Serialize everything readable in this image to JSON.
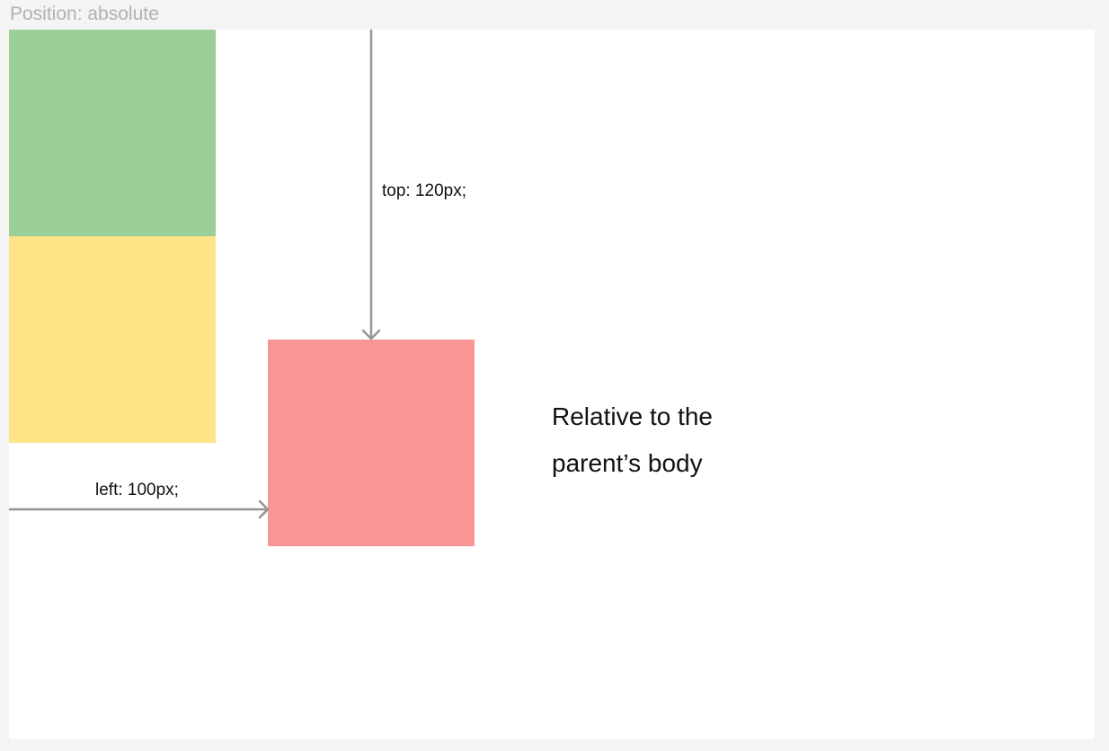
{
  "title": "Position: absolute",
  "labels": {
    "top": "top: 120px;",
    "left": "left: 100px;"
  },
  "caption": {
    "line1": "Relative to the",
    "line2": "parent’s body"
  },
  "colors": {
    "green_box": "#9acf97",
    "yellow_box": "#fee387",
    "red_box": "#f89595",
    "arrow": "#959595",
    "background": "#f4f4f4",
    "canvas": "#ffffff"
  }
}
